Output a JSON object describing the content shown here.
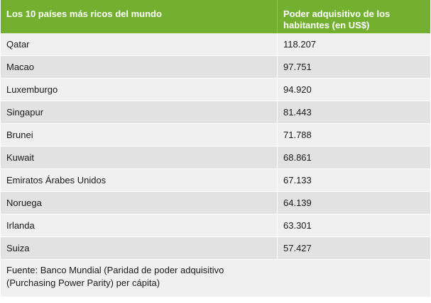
{
  "table": {
    "headers": {
      "country": "Los 10 países más ricos del mundo",
      "value": "Poder adquisitivo de los habitantes (en US$)"
    },
    "rows": [
      {
        "country": "Qatar",
        "value": "118.207"
      },
      {
        "country": "Macao",
        "value": "97.751"
      },
      {
        "country": "Luxemburgo",
        "value": "94.920"
      },
      {
        "country": "Singapur",
        "value": "81.443"
      },
      {
        "country": "Brunei",
        "value": "71.788"
      },
      {
        "country": "Kuwait",
        "value": "68.861"
      },
      {
        "country": "Emiratos Árabes Unidos",
        "value": "67.133"
      },
      {
        "country": "Noruega",
        "value": "64.139"
      },
      {
        "country": "Irlanda",
        "value": "63.301"
      },
      {
        "country": "Suiza",
        "value": "57.427"
      }
    ],
    "footer": "Fuente: Banco Mundial (Paridad de poder adquisitivo (Purchasing Power Parity) per cápita)"
  },
  "colors": {
    "header_bg": "#73b02f",
    "row_light": "#f0f0f0",
    "row_dark": "#e2e2e2"
  }
}
